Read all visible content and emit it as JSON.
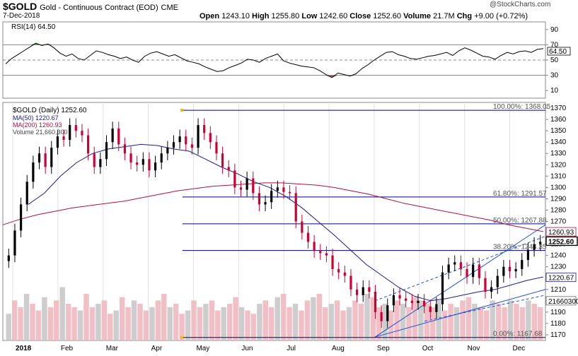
{
  "header": {
    "symbol": "$GOLD",
    "name": "Gold - Continuous Contract (EOD)",
    "exchange": "CME",
    "date": "7-Dec-2018",
    "open_label": "Open",
    "open": "1243.10",
    "high_label": "High",
    "high": "1255.80",
    "low_label": "Low",
    "low": "1242.60",
    "close_label": "Close",
    "close": "1252.60",
    "volume_label": "Volume",
    "volume": "21.7M",
    "chg_label": "Chg",
    "chg": "+9.00 (+0.72%)",
    "watermark": "@StockCharts.com"
  },
  "chart_data": [
    {
      "type": "line",
      "title": "RSI(14) 64.50",
      "ylim": [
        0,
        100
      ],
      "levels": [
        70,
        50,
        30
      ],
      "ticks": [
        "90",
        "70",
        "50",
        "30",
        "10"
      ],
      "current_label": "64.50",
      "series": [
        {
          "name": "RSI(14)",
          "values": [
            45,
            52,
            57,
            62,
            67,
            72,
            69,
            71,
            66,
            59,
            55,
            58,
            52,
            50,
            56,
            62,
            60,
            57,
            55,
            52,
            54,
            50,
            47,
            55,
            59,
            61,
            58,
            55,
            57,
            53,
            49,
            47,
            45,
            41,
            38,
            35,
            36,
            40,
            43,
            46,
            51,
            50,
            47,
            52,
            55,
            58,
            49,
            46,
            44,
            42,
            41,
            40,
            36,
            31,
            27,
            33,
            31,
            29,
            32,
            39,
            44,
            50,
            55,
            60,
            61,
            57,
            55,
            52,
            51,
            53,
            55,
            56,
            58,
            60,
            56,
            62,
            66,
            63,
            59,
            55,
            54,
            51,
            56,
            60,
            58,
            61,
            62,
            60,
            64,
            65
          ]
        }
      ]
    },
    {
      "type": "candlestick",
      "title": "$GOLD (Daily) 1252.60",
      "ylim": [
        1165,
        1375
      ],
      "y_ticks": [
        "1170",
        "1180",
        "1190",
        "1200",
        "1210",
        "1220",
        "1230",
        "1240",
        "1250",
        "1260",
        "1270",
        "1280",
        "1290",
        "1300",
        "1310",
        "1320",
        "1330",
        "1340",
        "1350",
        "1360",
        "1370"
      ],
      "x_ticks": [
        "2018",
        "Feb",
        "Mar",
        "Apr",
        "May",
        "Jun",
        "Jul",
        "Aug",
        "Sep",
        "Oct",
        "Nov",
        "Dec"
      ],
      "legend": [
        "$GOLD (Daily) 1252.60",
        "MA(50) 1220.67",
        "MA(200) 1260.93",
        "Volume 21,660,300"
      ],
      "colors": {
        "up": "#000000",
        "down": "#cc0033",
        "ma50": "#1a1a8c",
        "ma200": "#b01040",
        "fib": "#000080",
        "channel": "#1f4fd1"
      },
      "price_labels": [
        "1260.93",
        "1252.60",
        "1220.67",
        "21660300"
      ],
      "fibonacci": [
        {
          "label": "100.00%: 1368.05",
          "value": 1368.05
        },
        {
          "label": "61.80%: 1291.57",
          "value": 1291.57
        },
        {
          "label": "50.00%: 1267.88",
          "value": 1267.88
        },
        {
          "label": "38.20%: 1244.35",
          "value": 1244.35
        },
        {
          "label": "0.00%: 1167.68",
          "value": 1167.68
        }
      ],
      "close": [
        1240,
        1262,
        1285,
        1305,
        1322,
        1330,
        1318,
        1335,
        1345,
        1342,
        1355,
        1350,
        1346,
        1330,
        1318,
        1325,
        1340,
        1352,
        1338,
        1330,
        1322,
        1320,
        1325,
        1315,
        1322,
        1330,
        1335,
        1340,
        1345,
        1338,
        1335,
        1355,
        1348,
        1340,
        1330,
        1318,
        1315,
        1300,
        1298,
        1308,
        1295,
        1285,
        1287,
        1297,
        1300,
        1296,
        1295,
        1270,
        1260,
        1252,
        1244,
        1242,
        1240,
        1228,
        1225,
        1222,
        1210,
        1205,
        1212,
        1208,
        1190,
        1182,
        1196,
        1205,
        1202,
        1200,
        1198,
        1200,
        1195,
        1190,
        1197,
        1225,
        1232,
        1234,
        1228,
        1221,
        1232,
        1220,
        1208,
        1212,
        1222,
        1230,
        1226,
        1228,
        1236,
        1245,
        1250,
        1252
      ],
      "ma50": [
        1285,
        1295,
        1310,
        1322,
        1330,
        1334,
        1336,
        1338,
        1337,
        1334,
        1332,
        1325,
        1318,
        1312,
        1305,
        1300,
        1292,
        1282,
        1270,
        1258,
        1245,
        1232,
        1222,
        1212,
        1204,
        1200,
        1202,
        1205,
        1208,
        1210,
        1214,
        1218,
        1221
      ],
      "ma200": [
        1267,
        1272,
        1276,
        1279,
        1282,
        1284,
        1286,
        1288,
        1291,
        1294,
        1297,
        1299,
        1301,
        1302,
        1303,
        1304,
        1304,
        1303,
        1302,
        1300,
        1297,
        1294,
        1290,
        1286,
        1283,
        1280,
        1277,
        1274,
        1271,
        1267,
        1264,
        1261
      ],
      "volume_mid": 1175,
      "volume_relative": [
        0.4,
        0.6,
        0.5,
        0.7,
        0.55,
        0.45,
        0.65,
        0.5,
        0.6,
        0.8,
        0.55,
        0.5,
        0.45,
        0.7,
        0.5,
        0.55,
        0.6,
        0.4,
        0.45,
        0.65,
        0.5,
        0.6,
        0.55,
        0.45,
        0.5,
        0.6,
        0.7,
        0.5,
        0.55,
        0.4,
        0.45,
        0.6,
        0.5,
        0.55,
        0.6,
        0.45,
        0.5,
        0.55,
        0.65,
        0.5,
        0.45,
        0.4,
        0.55,
        0.6,
        0.5,
        0.65,
        0.7,
        0.5,
        0.55,
        0.45,
        0.6,
        0.65,
        0.7,
        0.5,
        0.55,
        0.6,
        0.45,
        0.5,
        0.6,
        0.55,
        0.7,
        0.65,
        0.5,
        0.55,
        0.45,
        0.6,
        0.55,
        0.5,
        0.65,
        0.6,
        0.55,
        0.5,
        0.6,
        0.45,
        0.55,
        0.5,
        0.6,
        0.65,
        0.55,
        0.5,
        0.45,
        0.6,
        0.55,
        0.5,
        0.6,
        0.55,
        0.5,
        0.6,
        0.55,
        0.5
      ]
    }
  ]
}
